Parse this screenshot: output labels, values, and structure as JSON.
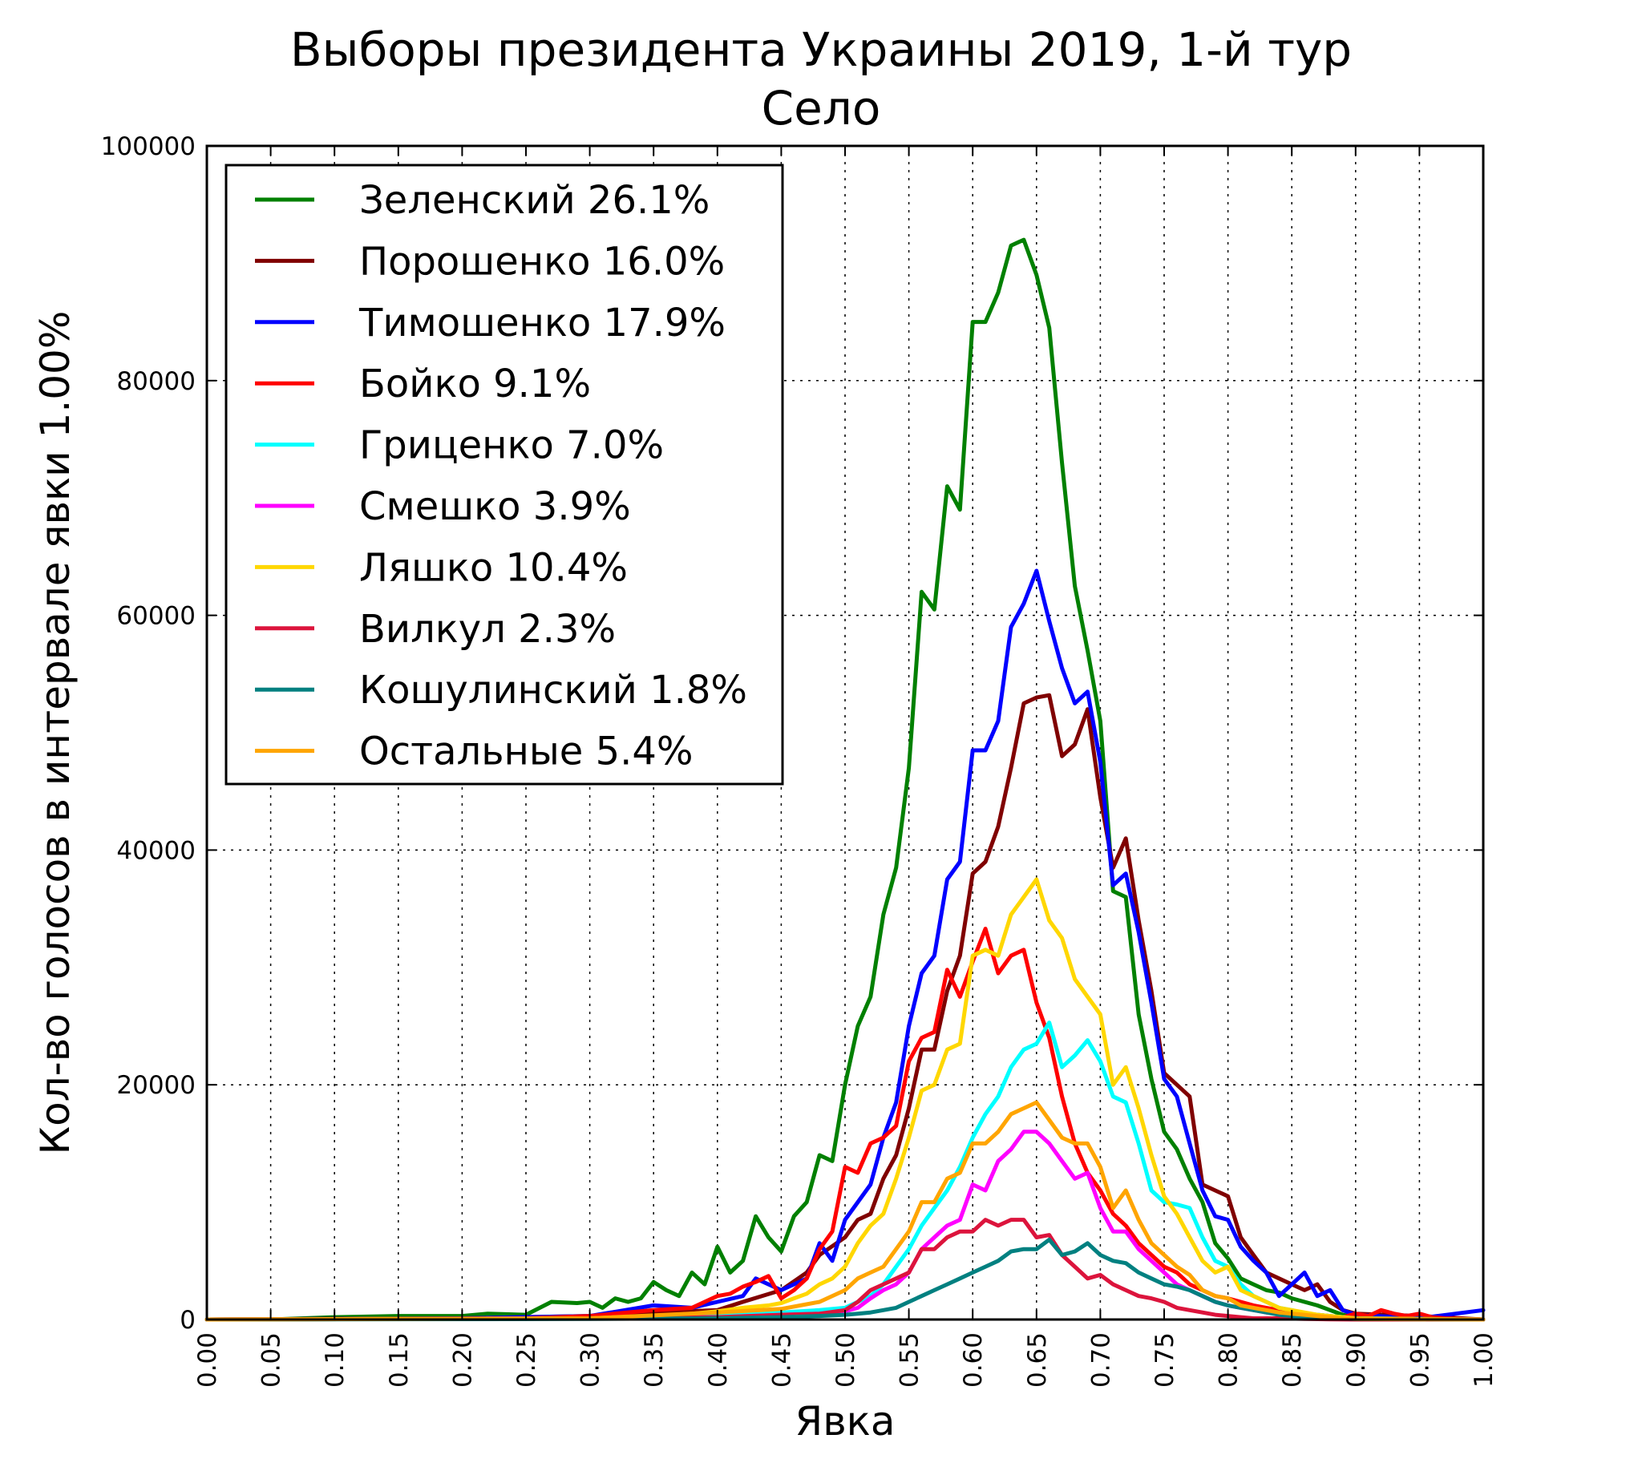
{
  "chart_data": {
    "type": "line",
    "title": "Выборы президента Украины 2019, 1-й тур",
    "subtitle": "Село",
    "xlabel": "Явка",
    "ylabel": "Кол-во голосов в интервале явки 1.00%",
    "xlim": [
      0,
      1
    ],
    "ylim": [
      0,
      100000
    ],
    "x_ticks": [
      "0.00",
      "0.05",
      "0.10",
      "0.15",
      "0.20",
      "0.25",
      "0.30",
      "0.35",
      "0.40",
      "0.45",
      "0.50",
      "0.55",
      "0.60",
      "0.65",
      "0.70",
      "0.75",
      "0.80",
      "0.85",
      "0.90",
      "0.95",
      "1.00"
    ],
    "y_ticks": [
      "0",
      "20000",
      "40000",
      "60000",
      "80000",
      "100000"
    ],
    "grid": true,
    "legend_position": "top-left",
    "series": [
      {
        "name": "Зеленский 26.1%",
        "color": "#008000",
        "x": [
          0.0,
          0.05,
          0.1,
          0.15,
          0.2,
          0.22,
          0.25,
          0.27,
          0.29,
          0.3,
          0.31,
          0.32,
          0.33,
          0.34,
          0.35,
          0.36,
          0.37,
          0.38,
          0.39,
          0.4,
          0.41,
          0.42,
          0.43,
          0.44,
          0.45,
          0.46,
          0.47,
          0.48,
          0.49,
          0.5,
          0.51,
          0.52,
          0.53,
          0.54,
          0.55,
          0.56,
          0.57,
          0.58,
          0.59,
          0.6,
          0.61,
          0.62,
          0.63,
          0.64,
          0.65,
          0.66,
          0.67,
          0.68,
          0.69,
          0.7,
          0.71,
          0.72,
          0.73,
          0.74,
          0.75,
          0.76,
          0.77,
          0.78,
          0.79,
          0.8,
          0.81,
          0.82,
          0.83,
          0.84,
          0.85,
          0.86,
          0.87,
          0.88,
          0.89,
          0.9,
          0.95,
          1.0
        ],
        "y": [
          0,
          0,
          200,
          300,
          300,
          500,
          400,
          1500,
          1400,
          1500,
          1000,
          1800,
          1500,
          1800,
          3200,
          2500,
          2000,
          4000,
          3000,
          6200,
          4000,
          5000,
          8800,
          7000,
          5800,
          8800,
          10000,
          14000,
          13500,
          20000,
          25000,
          27500,
          34500,
          38500,
          47000,
          62000,
          60500,
          71000,
          69000,
          85000,
          85000,
          87500,
          91500,
          92000,
          89000,
          84500,
          73000,
          62500,
          57000,
          51000,
          36500,
          36000,
          26000,
          20500,
          16000,
          14500,
          12000,
          10000,
          6500,
          5200,
          3500,
          3000,
          2500,
          2300,
          1800,
          1500,
          1200,
          800,
          400,
          200,
          100,
          0
        ]
      },
      {
        "name": "Порошенко 16.0%",
        "color": "#800000",
        "x": [
          0.0,
          0.2,
          0.3,
          0.35,
          0.4,
          0.42,
          0.45,
          0.47,
          0.48,
          0.5,
          0.51,
          0.52,
          0.53,
          0.54,
          0.55,
          0.56,
          0.57,
          0.58,
          0.59,
          0.6,
          0.61,
          0.62,
          0.63,
          0.64,
          0.65,
          0.66,
          0.67,
          0.68,
          0.69,
          0.7,
          0.71,
          0.72,
          0.73,
          0.74,
          0.75,
          0.76,
          0.77,
          0.78,
          0.79,
          0.8,
          0.81,
          0.82,
          0.83,
          0.84,
          0.85,
          0.86,
          0.87,
          0.88,
          0.89,
          0.9,
          0.95,
          1.0
        ],
        "y": [
          0,
          100,
          300,
          600,
          800,
          1500,
          2500,
          4000,
          5500,
          7000,
          8500,
          9000,
          12000,
          14000,
          18000,
          23000,
          23000,
          28000,
          31000,
          38000,
          39000,
          42000,
          47000,
          52500,
          53000,
          53200,
          48000,
          49000,
          52000,
          44500,
          38500,
          41000,
          34000,
          28000,
          21000,
          20000,
          19000,
          11500,
          11000,
          10500,
          7000,
          5500,
          4000,
          3500,
          3000,
          2500,
          3000,
          1500,
          800,
          500,
          300,
          0
        ]
      },
      {
        "name": "Тимошенко 17.9%",
        "color": "#0000ff",
        "x": [
          0.0,
          0.2,
          0.3,
          0.35,
          0.38,
          0.4,
          0.42,
          0.43,
          0.45,
          0.46,
          0.47,
          0.48,
          0.49,
          0.5,
          0.51,
          0.52,
          0.53,
          0.54,
          0.55,
          0.56,
          0.57,
          0.58,
          0.59,
          0.6,
          0.61,
          0.62,
          0.63,
          0.64,
          0.65,
          0.66,
          0.67,
          0.68,
          0.69,
          0.7,
          0.71,
          0.72,
          0.73,
          0.74,
          0.75,
          0.76,
          0.77,
          0.78,
          0.79,
          0.8,
          0.81,
          0.82,
          0.83,
          0.84,
          0.85,
          0.86,
          0.87,
          0.88,
          0.89,
          0.9,
          0.95,
          1.0
        ],
        "y": [
          0,
          100,
          300,
          1200,
          1000,
          1500,
          2000,
          3500,
          2500,
          3000,
          3500,
          6500,
          5000,
          8500,
          10000,
          11500,
          15500,
          18500,
          25000,
          29500,
          31000,
          37500,
          39000,
          48500,
          48500,
          51000,
          59000,
          61000,
          63800,
          59500,
          55500,
          52500,
          53500,
          47500,
          37000,
          38000,
          33000,
          27000,
          20500,
          19000,
          15000,
          11000,
          8800,
          8500,
          6200,
          5000,
          4000,
          2000,
          3000,
          4000,
          2000,
          2500,
          800,
          400,
          100,
          800
        ]
      },
      {
        "name": "Бойко 9.1%",
        "color": "#ff0000",
        "x": [
          0.0,
          0.25,
          0.3,
          0.35,
          0.38,
          0.4,
          0.41,
          0.42,
          0.43,
          0.44,
          0.45,
          0.46,
          0.47,
          0.48,
          0.49,
          0.5,
          0.51,
          0.52,
          0.53,
          0.54,
          0.55,
          0.56,
          0.57,
          0.58,
          0.59,
          0.6,
          0.61,
          0.62,
          0.63,
          0.64,
          0.65,
          0.66,
          0.67,
          0.68,
          0.69,
          0.7,
          0.71,
          0.72,
          0.73,
          0.74,
          0.75,
          0.76,
          0.77,
          0.78,
          0.79,
          0.8,
          0.81,
          0.82,
          0.83,
          0.84,
          0.85,
          0.86,
          0.87,
          0.88,
          0.89,
          0.9,
          0.91,
          0.92,
          0.93,
          0.94,
          0.95,
          0.96,
          0.97,
          1.0
        ],
        "y": [
          0,
          100,
          300,
          800,
          1000,
          2000,
          2200,
          2800,
          3200,
          3700,
          1800,
          2500,
          3500,
          6000,
          7500,
          13000,
          12500,
          15000,
          15500,
          16500,
          22000,
          24000,
          24500,
          29800,
          27500,
          30500,
          33300,
          29500,
          31000,
          31500,
          27000,
          24000,
          19000,
          15000,
          12500,
          11000,
          9000,
          8000,
          6500,
          5500,
          4500,
          4000,
          3000,
          2500,
          2000,
          1800,
          1500,
          1200,
          1000,
          800,
          600,
          500,
          400,
          300,
          200,
          500,
          300,
          800,
          500,
          300,
          500,
          200,
          100,
          0
        ]
      },
      {
        "name": "Гриценко 7.0%",
        "color": "#00ffff",
        "x": [
          0.0,
          0.3,
          0.4,
          0.45,
          0.48,
          0.5,
          0.51,
          0.52,
          0.53,
          0.54,
          0.55,
          0.56,
          0.57,
          0.58,
          0.59,
          0.6,
          0.61,
          0.62,
          0.63,
          0.64,
          0.65,
          0.66,
          0.67,
          0.68,
          0.69,
          0.7,
          0.71,
          0.72,
          0.73,
          0.74,
          0.75,
          0.76,
          0.77,
          0.78,
          0.79,
          0.8,
          0.81,
          0.82,
          0.83,
          0.84,
          0.85,
          0.86,
          0.87,
          0.88,
          0.9,
          1.0
        ],
        "y": [
          0,
          100,
          300,
          600,
          800,
          1000,
          1500,
          2000,
          3000,
          4500,
          6000,
          8000,
          9500,
          11000,
          13000,
          15500,
          17500,
          19000,
          21500,
          23000,
          23500,
          25300,
          21500,
          22500,
          23800,
          22000,
          19000,
          18500,
          15000,
          11000,
          10000,
          9800,
          9500,
          7000,
          5000,
          4500,
          3000,
          2000,
          1500,
          1000,
          800,
          500,
          400,
          300,
          100,
          0
        ]
      },
      {
        "name": "Смешко 3.9%",
        "color": "#ff00ff",
        "x": [
          0.0,
          0.3,
          0.4,
          0.45,
          0.48,
          0.5,
          0.51,
          0.52,
          0.53,
          0.54,
          0.55,
          0.56,
          0.57,
          0.58,
          0.59,
          0.6,
          0.61,
          0.62,
          0.63,
          0.64,
          0.65,
          0.66,
          0.67,
          0.68,
          0.69,
          0.7,
          0.71,
          0.72,
          0.73,
          0.74,
          0.75,
          0.76,
          0.77,
          0.78,
          0.79,
          0.8,
          0.81,
          0.82,
          0.83,
          0.84,
          0.85,
          0.86,
          0.87,
          0.88,
          0.9,
          1.0
        ],
        "y": [
          0,
          100,
          200,
          400,
          500,
          700,
          1000,
          1800,
          2500,
          3000,
          4000,
          6000,
          7000,
          8000,
          8500,
          11500,
          11000,
          13500,
          14500,
          16000,
          16000,
          15000,
          13500,
          12000,
          12500,
          9500,
          7500,
          7500,
          6000,
          5000,
          4000,
          3000,
          2500,
          2000,
          1500,
          1200,
          1000,
          800,
          600,
          500,
          400,
          300,
          200,
          100,
          50,
          0
        ]
      },
      {
        "name": "Ляшко 10.4%",
        "color": "#ffd700",
        "x": [
          0.0,
          0.3,
          0.35,
          0.38,
          0.4,
          0.42,
          0.44,
          0.45,
          0.46,
          0.47,
          0.48,
          0.49,
          0.5,
          0.51,
          0.52,
          0.53,
          0.54,
          0.55,
          0.56,
          0.57,
          0.58,
          0.59,
          0.6,
          0.61,
          0.62,
          0.63,
          0.64,
          0.65,
          0.66,
          0.67,
          0.68,
          0.69,
          0.7,
          0.71,
          0.72,
          0.73,
          0.74,
          0.75,
          0.76,
          0.77,
          0.78,
          0.79,
          0.8,
          0.81,
          0.82,
          0.83,
          0.84,
          0.85,
          0.86,
          0.87,
          0.88,
          0.89,
          0.9,
          0.95,
          1.0
        ],
        "y": [
          0,
          100,
          300,
          500,
          700,
          1000,
          1200,
          1400,
          1800,
          2200,
          3000,
          3500,
          4500,
          6500,
          8000,
          9000,
          12000,
          15500,
          19500,
          20000,
          23000,
          23500,
          31000,
          31500,
          31000,
          34500,
          36000,
          37500,
          34000,
          32500,
          29000,
          27500,
          26000,
          20000,
          21500,
          18000,
          14000,
          10500,
          9000,
          7000,
          5000,
          4000,
          4500,
          2500,
          2000,
          1500,
          1000,
          800,
          600,
          400,
          300,
          200,
          100,
          50,
          0
        ]
      },
      {
        "name": "Вилкул 2.3%",
        "color": "#dc143c",
        "x": [
          0.0,
          0.3,
          0.4,
          0.45,
          0.48,
          0.5,
          0.51,
          0.52,
          0.53,
          0.54,
          0.55,
          0.56,
          0.57,
          0.58,
          0.59,
          0.6,
          0.61,
          0.62,
          0.63,
          0.64,
          0.65,
          0.66,
          0.67,
          0.68,
          0.69,
          0.7,
          0.71,
          0.72,
          0.73,
          0.74,
          0.75,
          0.76,
          0.77,
          0.78,
          0.79,
          0.8,
          0.81,
          0.82,
          0.84,
          0.86,
          0.88,
          0.9,
          1.0
        ],
        "y": [
          0,
          100,
          200,
          400,
          500,
          800,
          1500,
          2500,
          3000,
          3500,
          4000,
          6000,
          6000,
          7000,
          7500,
          7500,
          8500,
          8000,
          8500,
          8500,
          7000,
          7200,
          5500,
          4500,
          3500,
          3800,
          3000,
          2500,
          2000,
          1800,
          1500,
          1000,
          800,
          600,
          400,
          300,
          200,
          100,
          100,
          50,
          20,
          0,
          0
        ]
      },
      {
        "name": "Кошулинский 1.8%",
        "color": "#008080",
        "x": [
          0.0,
          0.3,
          0.4,
          0.45,
          0.48,
          0.5,
          0.51,
          0.52,
          0.53,
          0.54,
          0.55,
          0.56,
          0.57,
          0.58,
          0.59,
          0.6,
          0.61,
          0.62,
          0.63,
          0.64,
          0.65,
          0.66,
          0.67,
          0.68,
          0.69,
          0.7,
          0.71,
          0.72,
          0.73,
          0.74,
          0.75,
          0.76,
          0.77,
          0.78,
          0.79,
          0.8,
          0.81,
          0.82,
          0.83,
          0.84,
          0.85,
          0.86,
          0.88,
          0.9,
          1.0
        ],
        "y": [
          0,
          50,
          100,
          200,
          300,
          400,
          500,
          600,
          800,
          1000,
          1500,
          2000,
          2500,
          3000,
          3500,
          4000,
          4500,
          5000,
          5800,
          6000,
          6000,
          6800,
          5500,
          5800,
          6500,
          5500,
          5000,
          4800,
          4000,
          3500,
          3000,
          2800,
          2500,
          2000,
          1500,
          1200,
          1000,
          800,
          600,
          400,
          300,
          200,
          100,
          50,
          0
        ]
      },
      {
        "name": "Остальные 5.4%",
        "color": "#ffa500",
        "x": [
          0.0,
          0.3,
          0.4,
          0.45,
          0.48,
          0.5,
          0.51,
          0.52,
          0.53,
          0.54,
          0.55,
          0.56,
          0.57,
          0.58,
          0.59,
          0.6,
          0.61,
          0.62,
          0.63,
          0.64,
          0.65,
          0.66,
          0.67,
          0.68,
          0.69,
          0.7,
          0.71,
          0.72,
          0.73,
          0.74,
          0.75,
          0.76,
          0.77,
          0.78,
          0.79,
          0.8,
          0.81,
          0.82,
          0.83,
          0.84,
          0.85,
          0.86,
          0.87,
          0.88,
          0.89,
          0.9,
          1.0
        ],
        "y": [
          0,
          100,
          600,
          900,
          1500,
          2500,
          3500,
          4000,
          4500,
          6000,
          7500,
          10000,
          10000,
          12000,
          12500,
          15000,
          15000,
          16000,
          17500,
          18000,
          18500,
          17000,
          15500,
          15000,
          15000,
          13000,
          9500,
          11000,
          8500,
          6500,
          5500,
          4500,
          3800,
          2500,
          2000,
          1800,
          1200,
          1000,
          800,
          600,
          500,
          400,
          300,
          200,
          100,
          50,
          0
        ]
      }
    ]
  }
}
